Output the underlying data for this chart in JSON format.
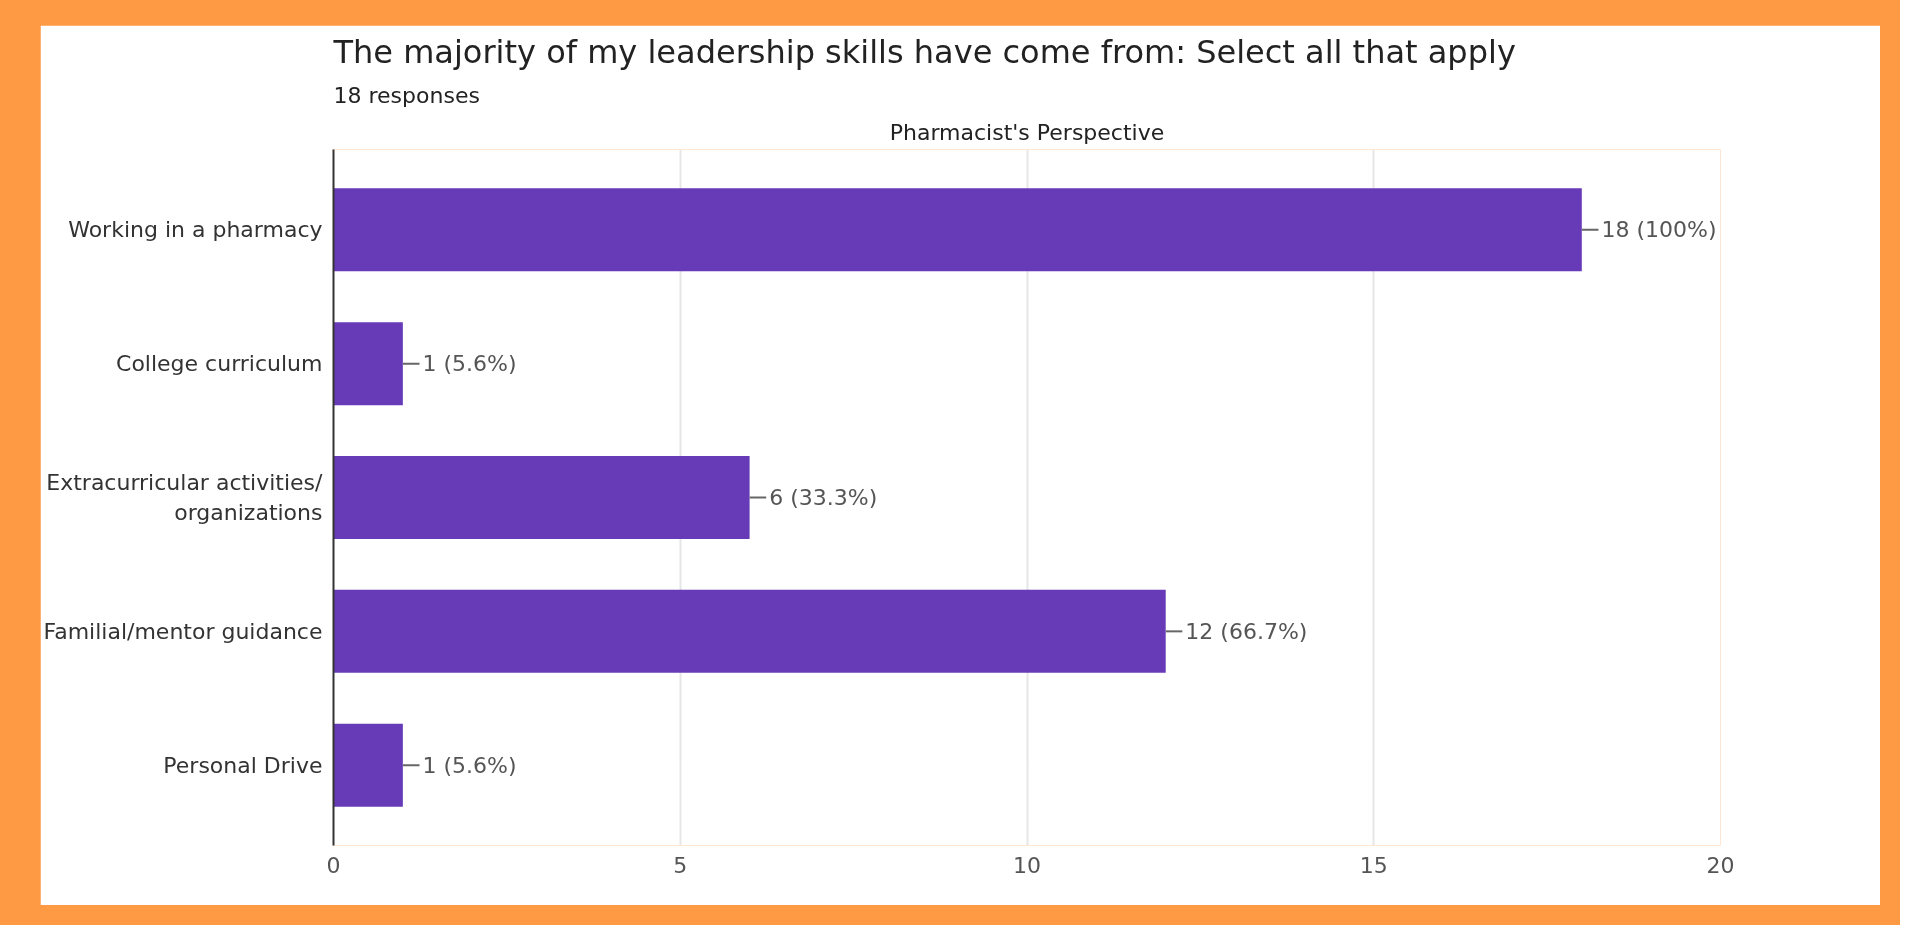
{
  "chart_data": {
    "type": "bar",
    "orientation": "horizontal",
    "title": "The majority of my leadership skills have come from: Select all that apply",
    "subtitle": "Pharmacist's Perspective",
    "annotations": [
      "18 responses"
    ],
    "categories": [
      "Working in a pharmacy",
      "College curriculum",
      "Extracurricular activities/\norganizations",
      "Familial/mentor guidance",
      "Personal Drive"
    ],
    "values": [
      18,
      1,
      6,
      12,
      1
    ],
    "value_labels": [
      "18 (100%)",
      "1 (5.6%)",
      "6 (33.3%)",
      "12 (66.7%)",
      "1 (5.6%)"
    ],
    "color": "#673ab7",
    "xlim": [
      0,
      20
    ],
    "xticks": [
      0,
      5,
      10,
      15,
      20
    ],
    "grid": "x"
  }
}
